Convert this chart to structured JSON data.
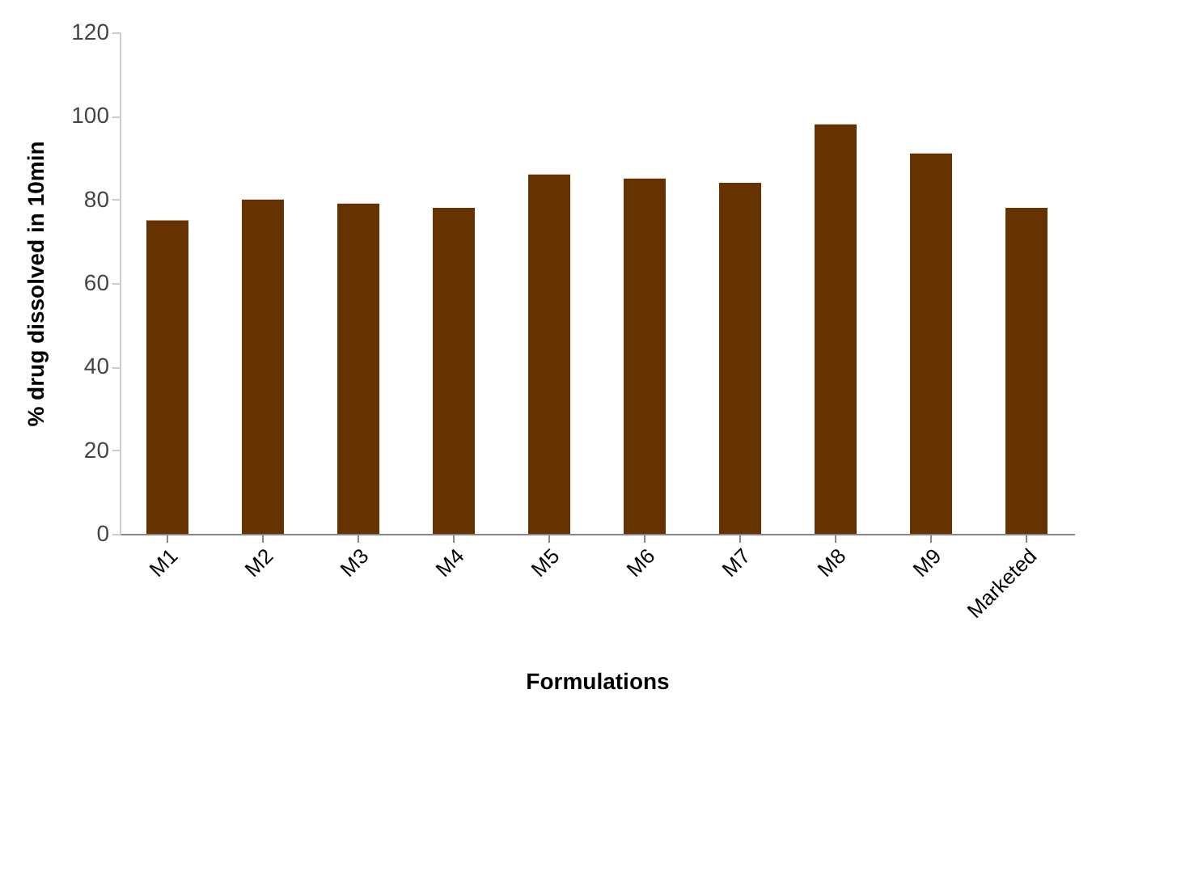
{
  "chart_data": {
    "type": "bar",
    "xlabel": "Formulations",
    "ylabel": "% drug dissolved in 10min",
    "categories": [
      "M1",
      "M2",
      "M3",
      "M4",
      "M5",
      "M6",
      "M7",
      "M8",
      "M9",
      "Marketed"
    ],
    "values": [
      75,
      80,
      79,
      78,
      86,
      85,
      84,
      98,
      91,
      78
    ],
    "color": "#663300",
    "ylim": [
      0,
      120
    ],
    "yticks": [
      0,
      20,
      40,
      60,
      80,
      100,
      120
    ],
    "grid": false
  }
}
